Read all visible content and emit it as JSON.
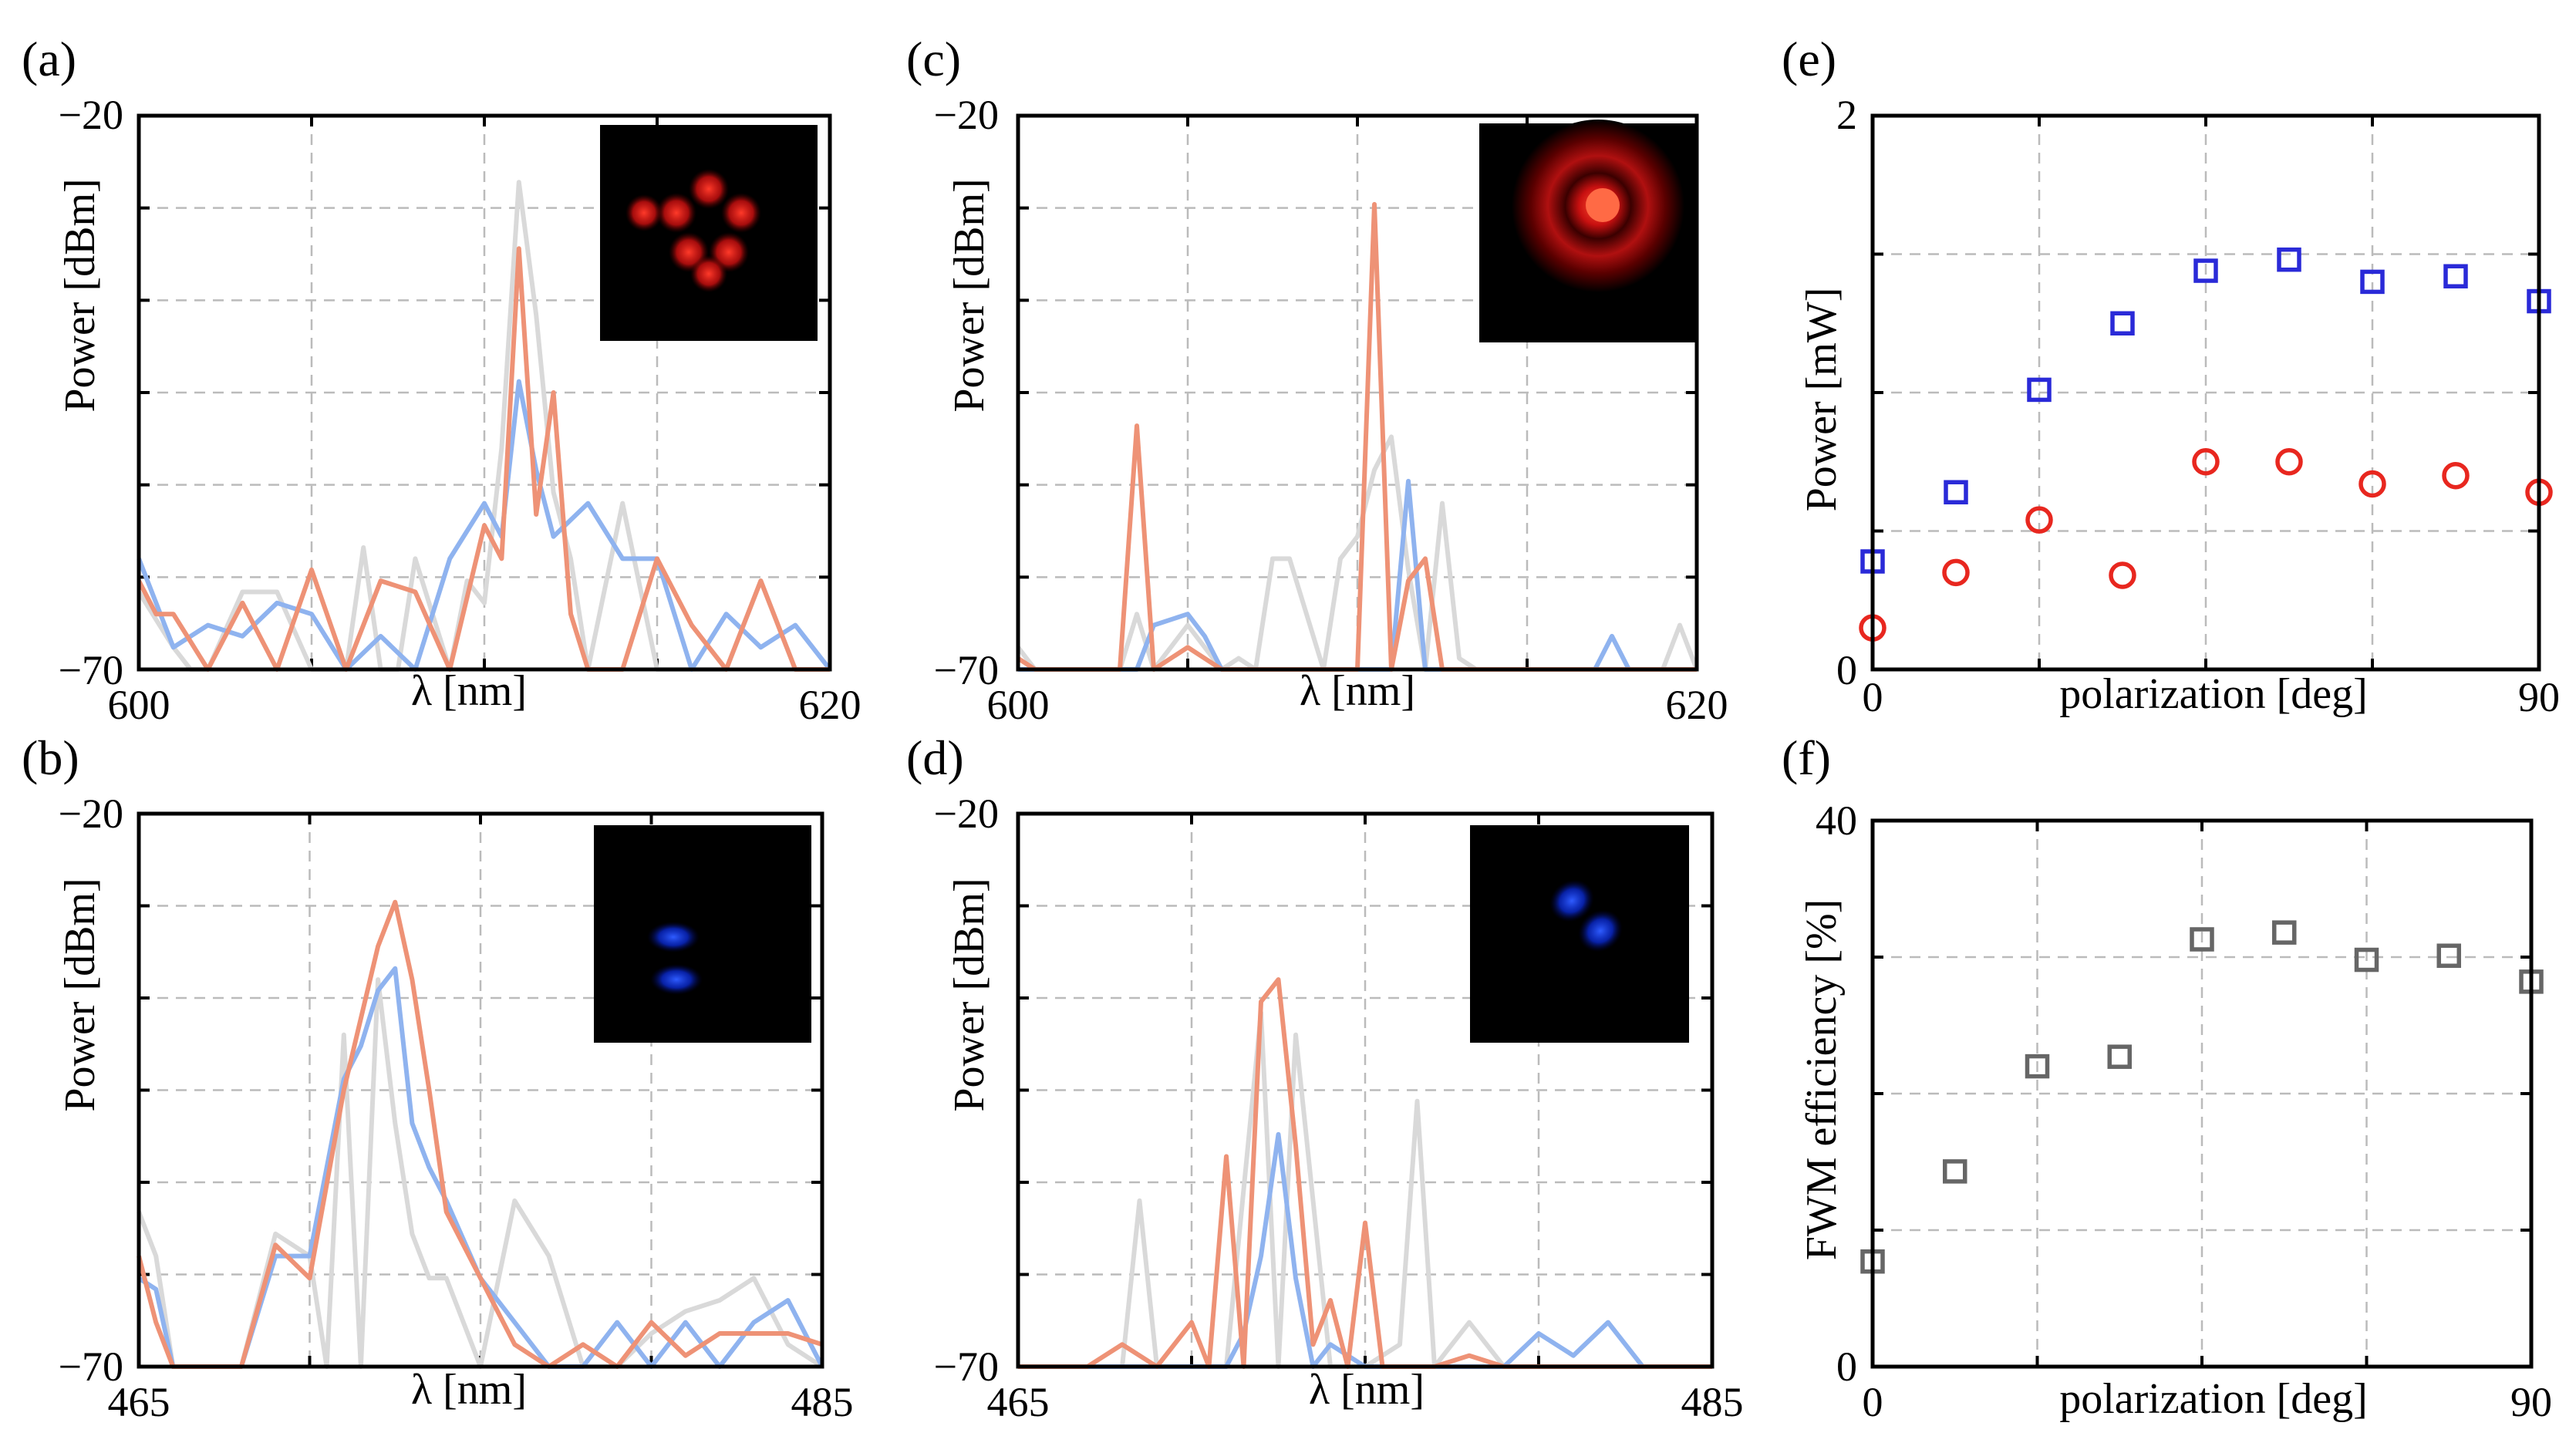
{
  "figure": {
    "colors": {
      "gray": "#d9d9d9",
      "blue": "#8fb3ef",
      "orange": "#ee9276",
      "square_blue": "#2a2ad8",
      "circle_red": "#e8271f",
      "square_gray": "#666666"
    }
  },
  "chart_data": [
    {
      "id": "a",
      "panel_label": "(a)",
      "type": "line",
      "xlabel": "λ [nm]",
      "ylabel": "Power [dBm]",
      "xlim": [
        600,
        620
      ],
      "ylim": [
        -70,
        -20
      ],
      "xtick_labels": [
        "600",
        "620"
      ],
      "ytick_labels": [
        "−20",
        "−70"
      ],
      "inset": "red-ring-mode",
      "series": [
        {
          "name": "gray",
          "color": "#d9d9d9",
          "x": [
            600,
            601,
            601.5,
            602,
            603,
            604,
            605,
            606,
            606.5,
            607,
            607.5,
            608,
            609,
            609.5,
            610,
            610.5,
            611,
            611.5,
            612,
            612.5,
            613,
            614,
            615,
            616,
            617,
            618,
            619,
            620
          ],
          "y": [
            -63,
            -68,
            -70,
            -70,
            -63,
            -63,
            -70,
            -70,
            -59,
            -70,
            -70,
            -60,
            -70,
            -62,
            -64,
            -50,
            -26,
            -38,
            -54,
            -60,
            -70,
            -55,
            -70,
            -70,
            -70,
            -62,
            -70,
            -70
          ]
        },
        {
          "name": "blue",
          "color": "#8fb3ef",
          "x": [
            600,
            600.5,
            601,
            602,
            603,
            604,
            605,
            606,
            607,
            608,
            609,
            610,
            610.5,
            611,
            611.5,
            612,
            613,
            614,
            615,
            616,
            617,
            618,
            619,
            620
          ],
          "y": [
            -60,
            -64,
            -68,
            -66,
            -67,
            -64,
            -65,
            -70,
            -67,
            -70,
            -60,
            -55,
            -58,
            -44,
            -52,
            -58,
            -55,
            -60,
            -60,
            -70,
            -65,
            -68,
            -66,
            -70
          ]
        },
        {
          "name": "orange",
          "color": "#ee9276",
          "x": [
            600,
            600.5,
            601,
            602,
            603,
            604,
            605,
            606,
            607,
            608,
            609,
            610,
            610.5,
            611,
            611.5,
            612,
            612.5,
            613,
            614,
            615,
            616,
            617,
            618,
            619,
            620
          ],
          "y": [
            -62,
            -65,
            -65,
            -70,
            -64,
            -70,
            -61,
            -70,
            -62,
            -63,
            -70,
            -57,
            -60,
            -32,
            -56,
            -45,
            -65,
            -70,
            -70,
            -60,
            -66,
            -70,
            -62,
            -70,
            -70
          ]
        }
      ]
    },
    {
      "id": "b",
      "panel_label": "(b)",
      "type": "line",
      "xlabel": "λ [nm]",
      "ylabel": "Power [dBm]",
      "xlim": [
        465,
        485
      ],
      "ylim": [
        -70,
        -20
      ],
      "xtick_labels": [
        "465",
        "485"
      ],
      "ytick_labels": [
        "−20",
        "−70"
      ],
      "inset": "blue-two-lobe-mode",
      "series": [
        {
          "name": "gray",
          "color": "#d9d9d9",
          "x": [
            465,
            465.5,
            466,
            467,
            468,
            469,
            470,
            470.5,
            471,
            471.5,
            472,
            472.5,
            473,
            473.5,
            474,
            475,
            476,
            477,
            478,
            479,
            480,
            481,
            482,
            483,
            484,
            485
          ],
          "y": [
            -56,
            -60,
            -70,
            -70,
            -70,
            -58,
            -60,
            -70,
            -40,
            -70,
            -35,
            -48,
            -58,
            -62,
            -62,
            -70,
            -55,
            -60,
            -70,
            -70,
            -67,
            -65,
            -64,
            -62,
            -68,
            -70
          ]
        },
        {
          "name": "blue",
          "color": "#8fb3ef",
          "x": [
            465,
            465.5,
            466,
            466.5,
            467,
            468,
            469,
            470,
            471,
            471.5,
            472,
            472.5,
            473,
            473.5,
            474,
            475,
            476,
            477,
            478,
            479,
            480,
            481,
            482,
            483,
            484,
            485
          ],
          "y": [
            -62,
            -63,
            -70,
            -70,
            -70,
            -70,
            -60,
            -60,
            -44,
            -41,
            -36,
            -34,
            -48,
            -52,
            -55,
            -62,
            -66,
            -70,
            -70,
            -66,
            -70,
            -66,
            -70,
            -66,
            -64,
            -70
          ]
        },
        {
          "name": "orange",
          "color": "#ee9276",
          "x": [
            465,
            465.5,
            466,
            466.5,
            467,
            468,
            469,
            470,
            471,
            472,
            472.5,
            473,
            473.5,
            474,
            475,
            476,
            477,
            478,
            479,
            480,
            481,
            482,
            483,
            484,
            485
          ],
          "y": [
            -60,
            -66,
            -70,
            -70,
            -70,
            -70,
            -59,
            -62,
            -45,
            -32,
            -28,
            -35,
            -45,
            -56,
            -62,
            -68,
            -70,
            -68,
            -70,
            -66,
            -69,
            -67,
            -67,
            -67,
            -68
          ]
        }
      ]
    },
    {
      "id": "c",
      "panel_label": "(c)",
      "type": "line",
      "xlabel": "λ [nm]",
      "ylabel": "Power [dBm]",
      "xlim": [
        600,
        620
      ],
      "ylim": [
        -70,
        -20
      ],
      "xtick_labels": [
        "600",
        "620"
      ],
      "ytick_labels": [
        "−20",
        "−70"
      ],
      "inset": "red-donut-mode",
      "series": [
        {
          "name": "gray",
          "color": "#d9d9d9",
          "x": [
            600,
            600.5,
            601,
            601.5,
            603,
            603.5,
            604,
            605,
            606,
            606.5,
            607,
            607.5,
            608,
            609,
            609.5,
            610,
            610.5,
            611,
            611.5,
            612,
            612.5,
            613,
            613.5,
            614,
            615,
            616,
            616.5,
            617,
            617.5,
            618,
            619,
            619.5,
            620
          ],
          "y": [
            -68,
            -70,
            -70,
            -70,
            -70,
            -65,
            -70,
            -66,
            -70,
            -69,
            -70,
            -60,
            -60,
            -70,
            -60,
            -58,
            -52,
            -49,
            -61,
            -70,
            -55,
            -69,
            -70,
            -70,
            -70,
            -70,
            -70,
            -70,
            -70,
            -70,
            -70,
            -66,
            -70
          ]
        },
        {
          "name": "blue",
          "color": "#8fb3ef",
          "x": [
            600,
            600.5,
            601,
            603.5,
            604,
            605,
            605.5,
            606,
            607,
            608,
            609,
            610,
            610.5,
            611,
            611.5,
            612,
            612.5,
            613,
            614,
            615,
            616,
            617,
            617.5,
            618,
            619,
            620
          ],
          "y": [
            -70,
            -70,
            -70,
            -70,
            -66,
            -65,
            -67,
            -70,
            -70,
            -70,
            -70,
            -70,
            -70,
            -70,
            -53,
            -70,
            -70,
            -70,
            -70,
            -70,
            -70,
            -70,
            -67,
            -70,
            -70,
            -70
          ]
        },
        {
          "name": "orange",
          "color": "#ee9276",
          "x": [
            600,
            600.5,
            601,
            602,
            603,
            603.5,
            604,
            605,
            606,
            607,
            608,
            609,
            609.5,
            610,
            610.5,
            611,
            611.5,
            612,
            612.5,
            613,
            614,
            615,
            616,
            617,
            618,
            619,
            620
          ],
          "y": [
            -69,
            -70,
            -70,
            -70,
            -70,
            -48,
            -70,
            -68,
            -70,
            -70,
            -70,
            -70,
            -70,
            -70,
            -28,
            -70,
            -62,
            -60,
            -70,
            -70,
            -70,
            -70,
            -70,
            -70,
            -70,
            -70,
            -70
          ]
        }
      ]
    },
    {
      "id": "d",
      "panel_label": "(d)",
      "type": "line",
      "xlabel": "λ [nm]",
      "ylabel": "Power [dBm]",
      "xlim": [
        465,
        485
      ],
      "ylim": [
        -70,
        -20
      ],
      "xtick_labels": [
        "465",
        "485"
      ],
      "ytick_labels": [
        "−20",
        "−70"
      ],
      "inset": "blue-diagonal-two-lobe-mode",
      "series": [
        {
          "name": "gray",
          "color": "#d9d9d9",
          "x": [
            465,
            466,
            467,
            468,
            468.5,
            469,
            470,
            471,
            472,
            472.5,
            473,
            474,
            475,
            476,
            476.5,
            477,
            478,
            479,
            480,
            481,
            482,
            483,
            484,
            485
          ],
          "y": [
            -70,
            -70,
            -70,
            -70,
            -55,
            -70,
            -70,
            -70,
            -38,
            -70,
            -40,
            -70,
            -70,
            -68,
            -46,
            -70,
            -66,
            -70,
            -70,
            -70,
            -70,
            -70,
            -70,
            -70
          ]
        },
        {
          "name": "blue",
          "color": "#8fb3ef",
          "x": [
            465,
            470,
            471,
            471.5,
            472,
            472.5,
            473,
            473.5,
            474,
            475,
            476,
            477,
            478,
            479,
            480,
            481,
            482,
            483,
            484,
            485
          ],
          "y": [
            -70,
            -70,
            -70,
            -67,
            -60,
            -49,
            -62,
            -70,
            -68,
            -70,
            -70,
            -70,
            -70,
            -70,
            -67,
            -69,
            -66,
            -70,
            -70,
            -70
          ]
        },
        {
          "name": "orange",
          "color": "#ee9276",
          "x": [
            465,
            466,
            467,
            468,
            469,
            470,
            470.5,
            471,
            471.5,
            472,
            472.5,
            473,
            473.5,
            474,
            474.5,
            475,
            475.5,
            476,
            476.5,
            477,
            478,
            479,
            480,
            481,
            482,
            483,
            484,
            485
          ],
          "y": [
            -70,
            -70,
            -70,
            -68,
            -70,
            -66,
            -70,
            -51,
            -70,
            -37,
            -35,
            -50,
            -68,
            -64,
            -70,
            -57,
            -70,
            -70,
            -70,
            -70,
            -69,
            -70,
            -70,
            -70,
            -70,
            -70,
            -70,
            -70
          ]
        }
      ]
    },
    {
      "id": "e",
      "panel_label": "(e)",
      "type": "scatter",
      "xlabel": "polarization [deg]",
      "ylabel": "Power [mW]",
      "xlim": [
        0,
        90
      ],
      "ylim": [
        0,
        2
      ],
      "xtick_labels": [
        "0",
        "90"
      ],
      "ytick_labels": [
        "2",
        "0"
      ],
      "series": [
        {
          "name": "squares",
          "marker": "square",
          "color": "#2a2ad8",
          "x": [
            0,
            11.25,
            22.5,
            33.75,
            45,
            56.25,
            67.5,
            78.75,
            90
          ],
          "y": [
            0.39,
            0.64,
            1.01,
            1.25,
            1.44,
            1.48,
            1.4,
            1.42,
            1.33
          ]
        },
        {
          "name": "circles",
          "marker": "circle",
          "color": "#e8271f",
          "x": [
            0,
            11.25,
            22.5,
            33.75,
            45,
            56.25,
            67.5,
            78.75,
            90
          ],
          "y": [
            0.15,
            0.35,
            0.54,
            0.34,
            0.75,
            0.75,
            0.67,
            0.7,
            0.64
          ]
        }
      ]
    },
    {
      "id": "f",
      "panel_label": "(f)",
      "type": "scatter",
      "xlabel": "polarization [deg]",
      "ylabel": "FWM efficiency [%]",
      "xlim": [
        0,
        90
      ],
      "ylim": [
        0,
        40
      ],
      "xtick_labels": [
        "0",
        "90"
      ],
      "ytick_labels": [
        "40",
        "0"
      ],
      "series": [
        {
          "name": "efficiency",
          "marker": "square",
          "color": "#666666",
          "x": [
            0,
            11.25,
            22.5,
            33.75,
            45,
            56.25,
            67.5,
            78.75,
            90
          ],
          "y": [
            7.7,
            14.3,
            22.0,
            22.7,
            31.3,
            31.8,
            29.8,
            30.1,
            28.2
          ]
        }
      ]
    }
  ]
}
